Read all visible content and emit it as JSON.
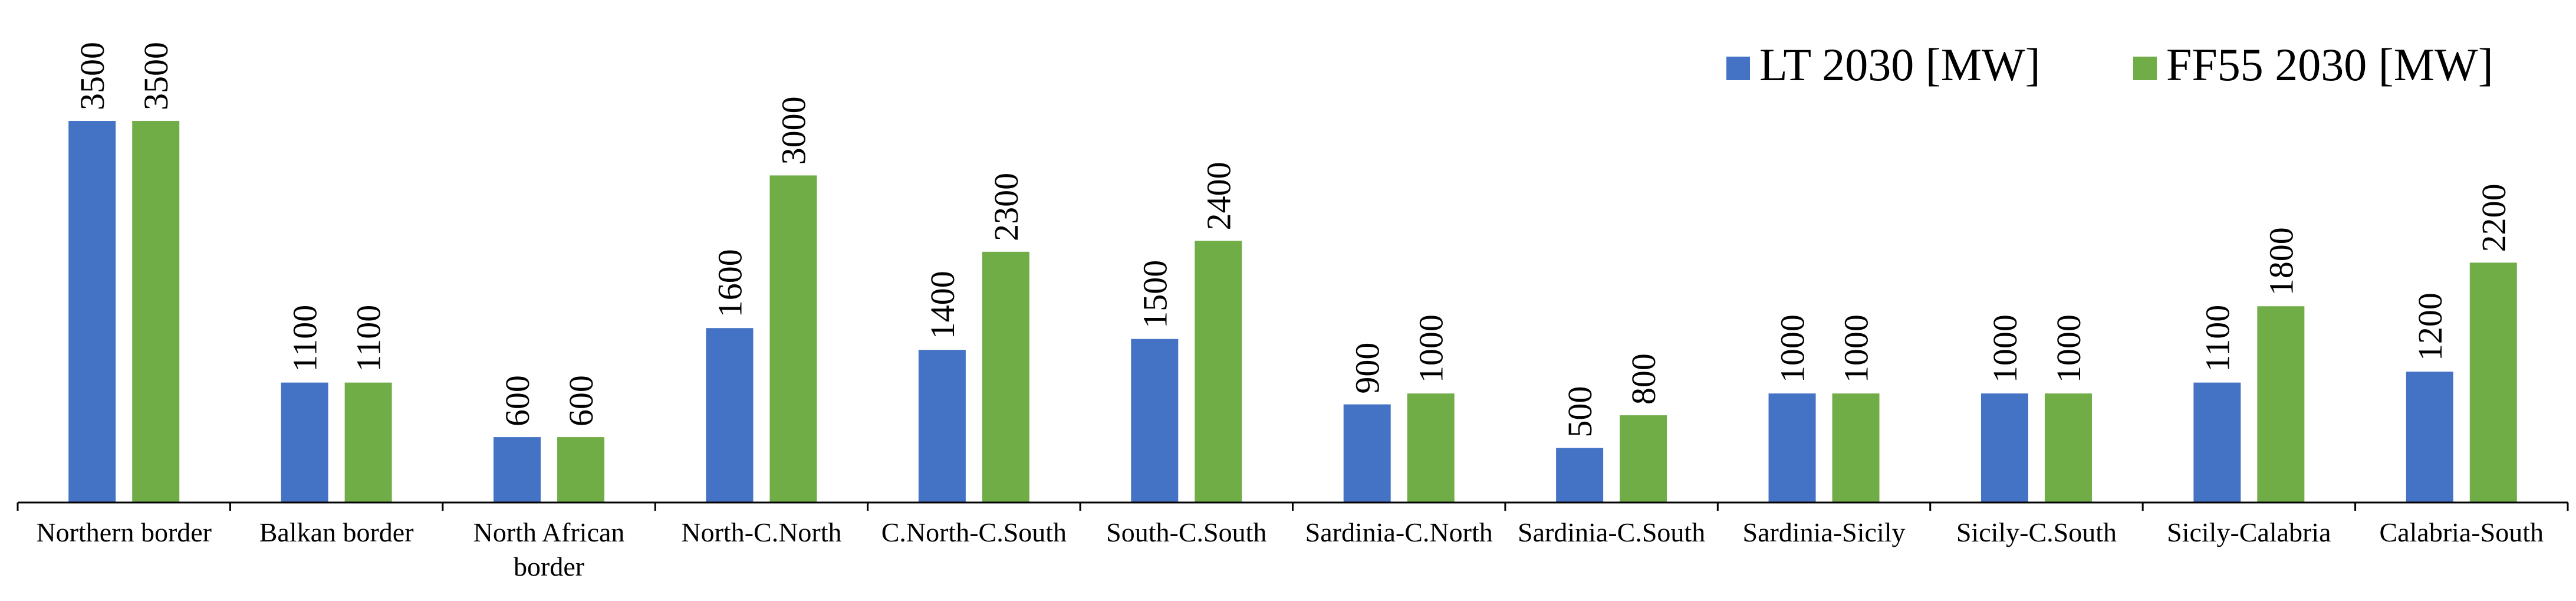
{
  "chart_data": {
    "type": "bar",
    "categories": [
      "Northern border",
      "Balkan border",
      "North African border",
      "North-C.North",
      "C.North-C.South",
      "South-C.South",
      "Sardinia-C.North",
      "Sardinia-C.South",
      "Sardinia-Sicily",
      "Sicily-C.South",
      "Sicily-Calabria",
      "Calabria-South"
    ],
    "series": [
      {
        "name": "LT 2030 [MW]",
        "color": "#4472C4",
        "values": [
          3500,
          1100,
          600,
          1600,
          1400,
          1500,
          900,
          500,
          1000,
          1000,
          1100,
          1200
        ]
      },
      {
        "name": "FF55 2030 [MW]",
        "color": "#70AD47",
        "values": [
          3500,
          1100,
          600,
          3000,
          2300,
          2400,
          1000,
          800,
          1000,
          1000,
          1800,
          2200
        ]
      }
    ],
    "ylim": [
      0,
      3500
    ],
    "grid": false,
    "legend_position": "top-right",
    "data_labels": true
  }
}
